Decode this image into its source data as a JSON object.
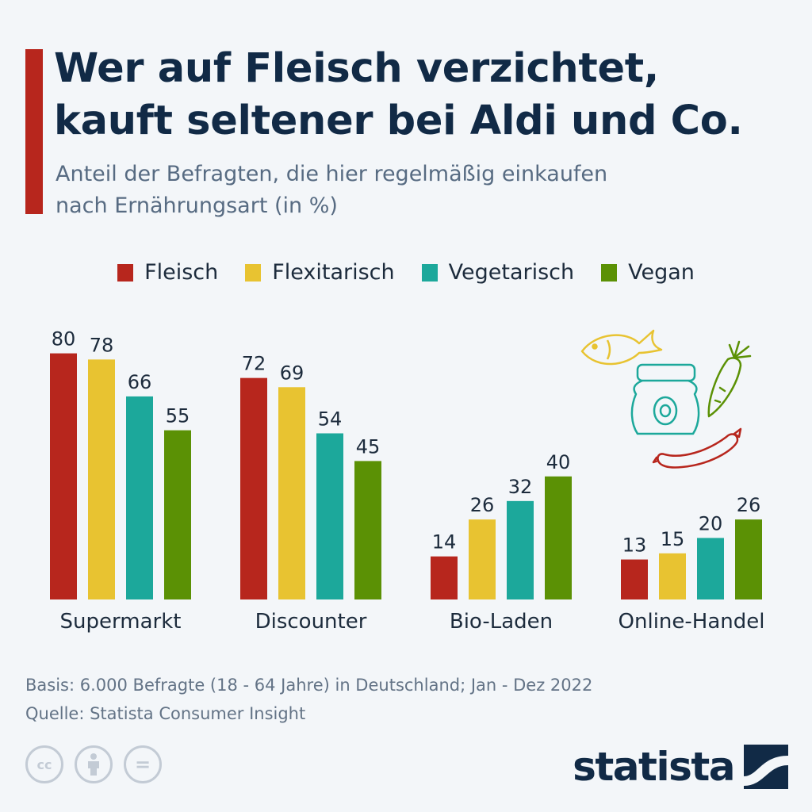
{
  "header": {
    "title_line1": "Wer auf Fleisch verzichtet,",
    "title_line2": "kauft seltener bei Aldi und Co.",
    "subtitle_line1": "Anteil der Befragten, die hier regelmäßig einkaufen",
    "subtitle_line2": "nach Ernährungsart (in %)"
  },
  "colors": {
    "accent": "#b7261d",
    "fleisch": "#b7261d",
    "flexitarisch": "#e8c331",
    "vegetarisch": "#1ca89b",
    "vegan": "#5b9105",
    "text_dark": "#112a46"
  },
  "chart_data": {
    "type": "bar",
    "categories": [
      "Supermarkt",
      "Discounter",
      "Bio-Laden",
      "Online-Handel"
    ],
    "series": [
      {
        "name": "Fleisch",
        "values": [
          80,
          72,
          14,
          13
        ]
      },
      {
        "name": "Flexitarisch",
        "values": [
          78,
          69,
          26,
          15
        ]
      },
      {
        "name": "Vegetarisch",
        "values": [
          66,
          54,
          32,
          20
        ]
      },
      {
        "name": "Vegan",
        "values": [
          55,
          45,
          40,
          26
        ]
      }
    ],
    "ylim": [
      0,
      80
    ],
    "grid": false,
    "legend": "top-center",
    "data_labels": true
  },
  "footer": {
    "basis": "Basis: 6.000 Befragte (18 - 64 Jahre) in Deutschland; Jan - Dez 2022",
    "source": "Quelle: Statista Consumer Insight"
  },
  "license": {
    "icons": [
      "cc-icon",
      "attribution-icon",
      "no-derivatives-icon"
    ],
    "cc_text": "cc",
    "nd_text": "="
  },
  "brand": {
    "name": "statista",
    "logo_icon": "statista-logo-icon"
  },
  "illustration": {
    "icons": [
      "fish-icon",
      "jar-icon",
      "carrot-icon",
      "sausage-icon"
    ]
  }
}
